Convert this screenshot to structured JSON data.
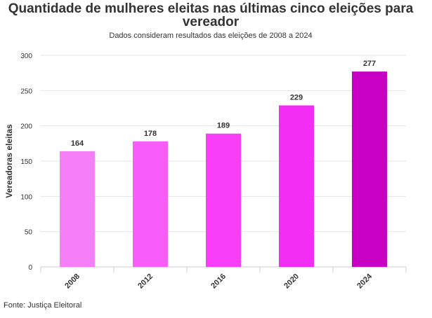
{
  "chart_data": {
    "type": "bar",
    "title": "Quantidade de mulheres eleitas nas últimas cinco eleições para vereador",
    "subtitle": "Dados consideram resultados das eleições de 2008 a 2024",
    "ylabel": "Vereadoras eleitas",
    "xlabel": "",
    "categories": [
      "2008",
      "2012",
      "2016",
      "2020",
      "2024"
    ],
    "values": [
      164,
      178,
      189,
      229,
      277
    ],
    "data_labels": [
      "164",
      "178",
      "189",
      "229",
      "277"
    ],
    "colors": [
      "#f47ff7",
      "#f95df9",
      "#f83ef8",
      "#f22ef4",
      "#c800c4"
    ],
    "ylim": [
      0,
      300
    ],
    "yticks": [
      0,
      50,
      100,
      150,
      200,
      250,
      300
    ],
    "ytick_labels": [
      "0",
      "50",
      "100",
      "150",
      "200",
      "250",
      "300"
    ],
    "grid": true,
    "legend": "none"
  },
  "source": "Fonte: Justiça Eleitoral"
}
